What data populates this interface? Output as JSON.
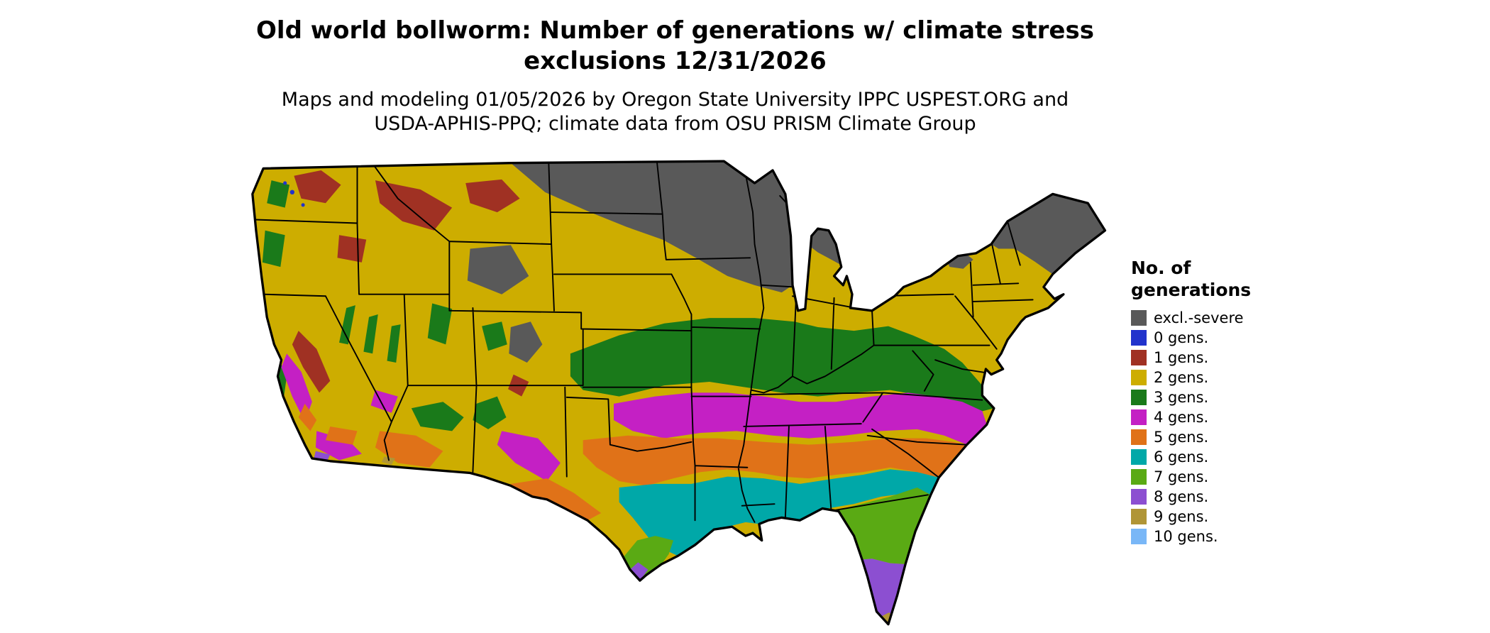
{
  "title": {
    "line1": "Old world bollworm: Number of generations w/ climate stress",
    "line2": "exclusions 12/31/2026"
  },
  "subtitle": {
    "line1": "Maps and modeling 01/05/2026 by Oregon State University IPPC USPEST.ORG and",
    "line2": "USDA-APHIS-PPQ; climate data from OSU PRISM Climate Group"
  },
  "legend": {
    "title_line1": "No. of",
    "title_line2": "generations",
    "items": [
      {
        "key": "excl",
        "label": "excl.-severe",
        "color": "#595959"
      },
      {
        "key": "g0",
        "label": "0 gens.",
        "color": "#2233cc"
      },
      {
        "key": "g1",
        "label": "1 gens.",
        "color": "#a03123"
      },
      {
        "key": "g2",
        "label": "2 gens.",
        "color": "#cdad00"
      },
      {
        "key": "g3",
        "label": "3 gens.",
        "color": "#1a7a1a"
      },
      {
        "key": "g4",
        "label": "4 gens.",
        "color": "#c420c4"
      },
      {
        "key": "g5",
        "label": "5 gens.",
        "color": "#e07218"
      },
      {
        "key": "g6",
        "label": "6 gens.",
        "color": "#00a8a8"
      },
      {
        "key": "g7",
        "label": "7 gens.",
        "color": "#5aaa14"
      },
      {
        "key": "g8",
        "label": "8 gens.",
        "color": "#8c4fd1"
      },
      {
        "key": "g9",
        "label": "9 gens.",
        "color": "#b09536"
      },
      {
        "key": "g10",
        "label": "10 gens.",
        "color": "#79b7f7"
      }
    ]
  },
  "map": {
    "area": "Contiguous United States",
    "kind": "raster choropleth of insect generation counts with black state borders",
    "dominant_bands_north_to_south": [
      "excl.-severe (northern plains, Great Lakes, northern New England)",
      "2 gens.",
      "3 gens.",
      "4 gens.",
      "5 gens.",
      "6 gens. (Gulf inland)",
      "7 gens. (Gulf coast, north Florida)",
      "8 gens. (south Texas tip, central/south Florida)"
    ],
    "western_mosaic": "mixed 1-5 gens. with excl.-severe in high mountains"
  }
}
